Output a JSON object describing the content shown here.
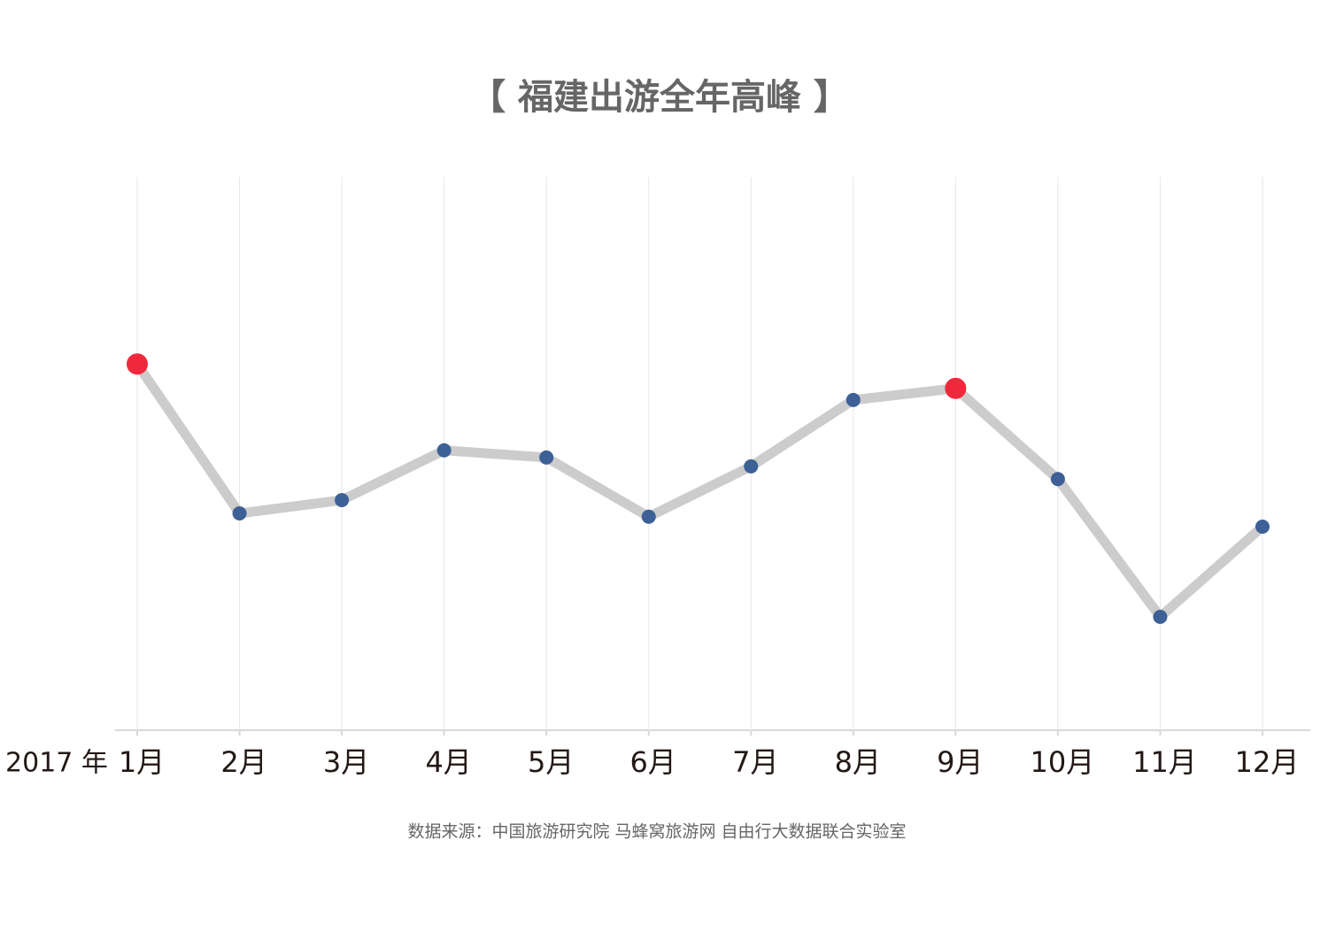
{
  "chart_data": {
    "type": "line",
    "title": "【 福建出游全年高峰 】",
    "x_label": "2017 年",
    "source": "数据来源：中国旅游研究院 马蜂窝旅游网 自由行大数据联合实验室",
    "categories": [
      "1月",
      "2月",
      "3月",
      "4月",
      "5月",
      "6月",
      "7月",
      "8月",
      "9月",
      "10月",
      "11月",
      "12月"
    ],
    "values": [
      66.2,
      39.2,
      41.6,
      50.6,
      49.3,
      38.6,
      47.7,
      59.7,
      61.8,
      45.4,
      20.5,
      36.8
    ],
    "color": "#cccccc",
    "point_colors": [
      "#f0283c",
      "#3d6096",
      "#3d6096",
      "#3d6096",
      "#3d6096",
      "#3d6096",
      "#3d6096",
      "#3d6096",
      "#f0283c",
      "#3d6096",
      "#3d6096",
      "#3d6096"
    ],
    "ylim": [
      0,
      100
    ],
    "grid": true
  }
}
